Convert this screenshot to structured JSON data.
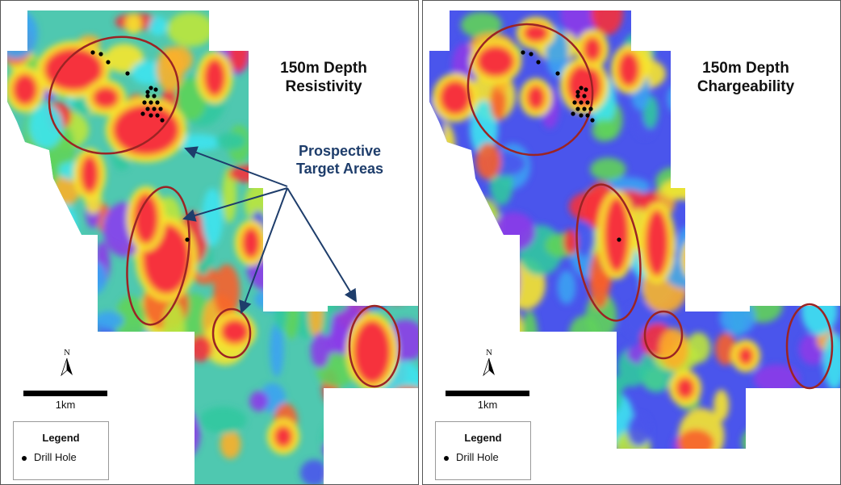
{
  "panels": [
    {
      "id": "resistivity",
      "title_line1": "150m Depth",
      "title_line2": "Resistivity",
      "palette": [
        "#f6303c",
        "#f7602b",
        "#fbaf2a",
        "#f7e52f",
        "#bde63a",
        "#5fd35a",
        "#32c8a0",
        "#3ee3f0",
        "#3aa2f2",
        "#4a55ec",
        "#8c3be8"
      ],
      "base_color": "#4fc8b0"
    },
    {
      "id": "chargeability",
      "title_line1": "150m Depth",
      "title_line2": "Chargeability",
      "palette": [
        "#f6303c",
        "#f7602b",
        "#fbaf2a",
        "#f7e52f",
        "#bde63a",
        "#5fd35a",
        "#32c8a0",
        "#3ee3f0",
        "#3aa2f2",
        "#4a55ec",
        "#8c3be8"
      ],
      "base_color": "#4a55ec"
    }
  ],
  "annotation": {
    "line1": "Prospective",
    "line2": "Target Areas",
    "color": "#1e3d6b"
  },
  "target_ellipse_color": "#9b2424",
  "north_label": "N",
  "scale_label": "1km",
  "legend": {
    "title": "Legend",
    "item": "Drill Hole"
  }
}
